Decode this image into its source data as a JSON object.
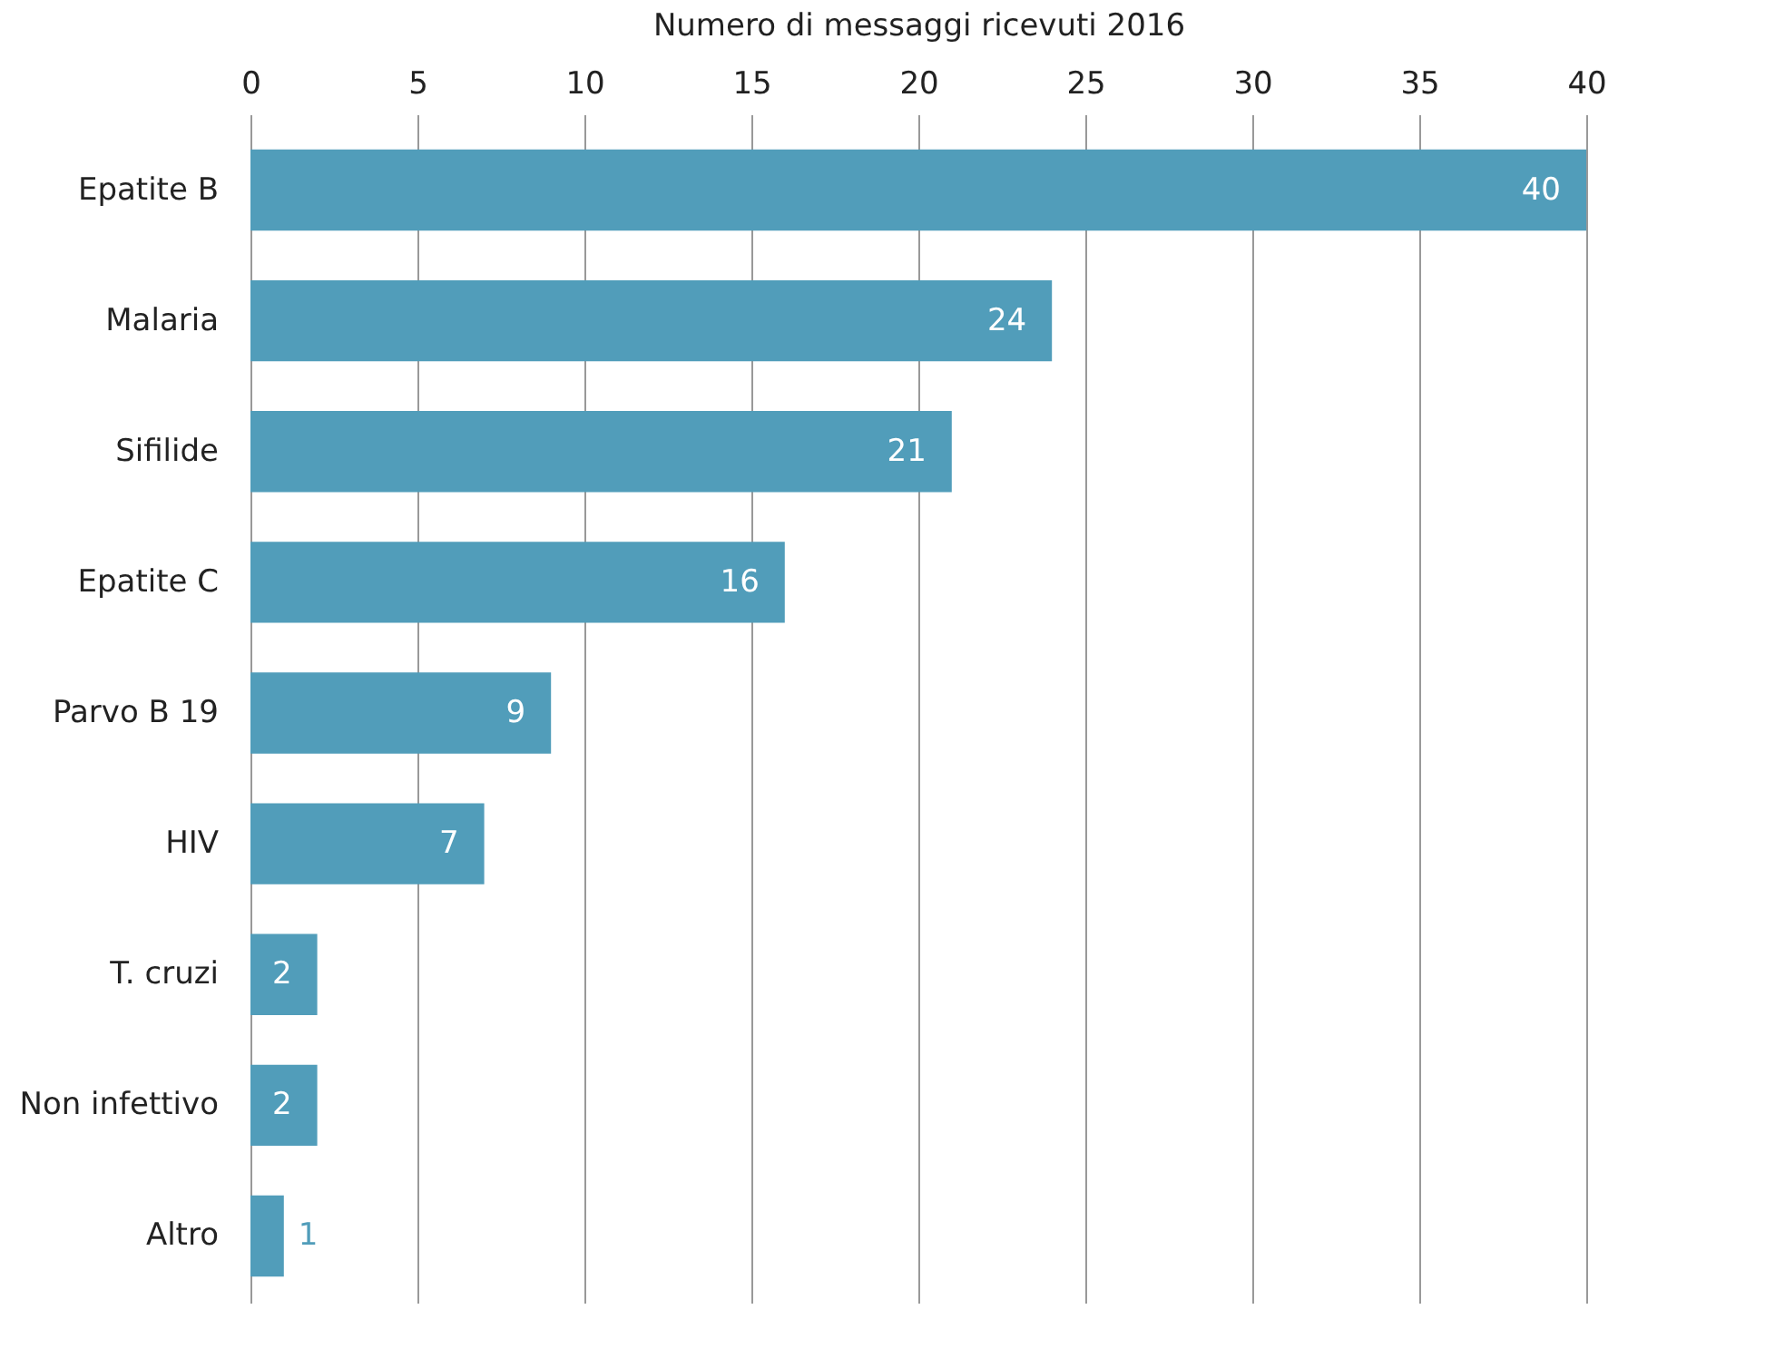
{
  "chart_data": {
    "type": "bar",
    "orientation": "horizontal",
    "xlabel": "Numero di messaggi ricevuti 2016",
    "categories": [
      "Epatite B",
      "Malaria",
      "Sifilide",
      "Epatite C",
      "Parvo B 19",
      "HIV",
      "T. cruzi",
      "Non infettivo",
      "Altro"
    ],
    "values": [
      40,
      24,
      21,
      16,
      9,
      7,
      2,
      2,
      1
    ],
    "color": "#519dba",
    "xlim": [
      0,
      40
    ],
    "xticks": [
      0,
      5,
      10,
      15,
      20,
      25,
      30,
      35,
      40
    ],
    "grid": "x",
    "data_labels": true
  }
}
